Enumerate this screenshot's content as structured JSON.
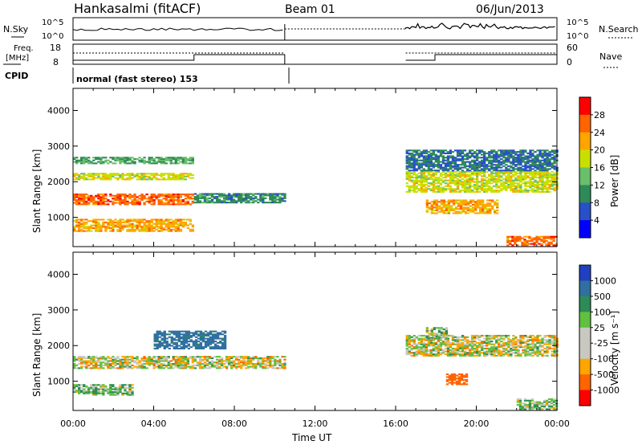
{
  "header": {
    "station": "Hankasalmi (fitACF)",
    "beam": "Beam 01",
    "date": "06/Jun/2013"
  },
  "sky_panel": {
    "left_label": "N.Sky",
    "right_label": "N.Search",
    "left_ticks": [
      "10^5",
      "10^0"
    ],
    "right_ticks": [
      "10^5",
      "10^0"
    ]
  },
  "freq_panel": {
    "left_label_1": "Freq.",
    "left_label_2": "[MHz]",
    "right_label": "Nave",
    "left_ticks": [
      "18",
      "8"
    ],
    "right_ticks": [
      "60",
      "0"
    ]
  },
  "cpid": {
    "label": "CPID",
    "segments": [
      {
        "x_start": "00:00",
        "x_end": "10:30",
        "text": "normal (fast stereo) 153"
      },
      {
        "x_start": "16:30",
        "x_end": "24:00",
        "text": ""
      }
    ]
  },
  "x_axis": {
    "label": "Time UT",
    "ticks": [
      "00:00",
      "04:00",
      "08:00",
      "12:00",
      "16:00",
      "20:00",
      "00:00"
    ],
    "range_hours": [
      0,
      24
    ]
  },
  "power_panel": {
    "ylabel": "Slant Range [km]",
    "yticks": [
      "1000",
      "2000",
      "3000",
      "4000"
    ],
    "ylim": [
      180,
      4620
    ],
    "colorbar_label": "Power [dB]",
    "colorbar_ticks": [
      "4",
      "8",
      "12",
      "16",
      "20",
      "24",
      "28"
    ],
    "colorbar_colors": [
      "#0000ff",
      "#2850c8",
      "#2e8b57",
      "#6abf6a",
      "#c8e000",
      "#ffa500",
      "#ff6400",
      "#ff0000"
    ]
  },
  "velocity_panel": {
    "ylabel": "Slant Range [km]",
    "yticks": [
      "1000",
      "2000",
      "3000",
      "4000"
    ],
    "ylim": [
      180,
      4620
    ],
    "colorbar_label": "Velocity [m s⁻¹]",
    "colorbar_ticks": [
      "1000",
      "500",
      "100",
      "25",
      "-25",
      "-100",
      "-500",
      "-1000"
    ],
    "colorbar_colors": [
      "#2040c0",
      "#3070a0",
      "#2e8b57",
      "#60c040",
      "#c8c8c0",
      "#c8c8c0",
      "#ffa500",
      "#ff6400",
      "#ff0000"
    ]
  },
  "chart_data": {
    "type": "heatmap",
    "title": "Hankasalmi (fitACF)",
    "xlabel": "Time UT",
    "ylabel": "Slant Range [km]",
    "x_range_hours": [
      0,
      24
    ],
    "y_range_km": [
      180,
      4620
    ],
    "data_gaps_hours": [
      [
        10.5,
        16.5
      ]
    ],
    "power_bands": [
      {
        "t_start": 0.0,
        "t_end": 6.0,
        "range_start_km": 1350,
        "range_end_km": 1650,
        "power_db": 26
      },
      {
        "t_start": 0.0,
        "t_end": 6.0,
        "range_start_km": 600,
        "range_end_km": 950,
        "power_db": 22
      },
      {
        "t_start": 0.0,
        "t_end": 6.0,
        "range_start_km": 2050,
        "range_end_km": 2250,
        "power_db": 18
      },
      {
        "t_start": 0.0,
        "t_end": 6.0,
        "range_start_km": 2500,
        "range_end_km": 2700,
        "power_db": 12
      },
      {
        "t_start": 6.0,
        "t_end": 10.5,
        "range_start_km": 1400,
        "range_end_km": 1650,
        "power_db": 10
      },
      {
        "t_start": 16.5,
        "t_end": 24.0,
        "range_start_km": 1700,
        "range_end_km": 2300,
        "power_db": 18
      },
      {
        "t_start": 17.5,
        "t_end": 21.0,
        "range_start_km": 1100,
        "range_end_km": 1500,
        "power_db": 22
      },
      {
        "t_start": 16.5,
        "t_end": 24.0,
        "range_start_km": 2300,
        "range_end_km": 2900,
        "power_db": 8
      },
      {
        "t_start": 21.5,
        "t_end": 24.0,
        "range_start_km": 200,
        "range_end_km": 450,
        "power_db": 26
      }
    ],
    "velocity_bands": [
      {
        "t_start": 0.0,
        "t_end": 10.5,
        "range_start_km": 1350,
        "range_end_km": 1700,
        "velocity_ms": 0
      },
      {
        "t_start": 0.0,
        "t_end": 3.0,
        "range_start_km": 600,
        "range_end_km": 900,
        "velocity_ms": 80
      },
      {
        "t_start": 4.0,
        "t_end": 7.5,
        "range_start_km": 1900,
        "range_end_km": 2400,
        "velocity_ms": 600
      },
      {
        "t_start": 16.5,
        "t_end": 24.0,
        "range_start_km": 1700,
        "range_end_km": 2300,
        "velocity_ms": 0
      },
      {
        "t_start": 18.5,
        "t_end": 19.5,
        "range_start_km": 900,
        "range_end_km": 1200,
        "velocity_ms": -300
      },
      {
        "t_start": 17.5,
        "t_end": 18.5,
        "range_start_km": 2200,
        "range_end_km": 2500,
        "velocity_ms": 60
      },
      {
        "t_start": 22.0,
        "t_end": 24.0,
        "range_start_km": 200,
        "range_end_km": 500,
        "velocity_ms": 80
      }
    ]
  }
}
